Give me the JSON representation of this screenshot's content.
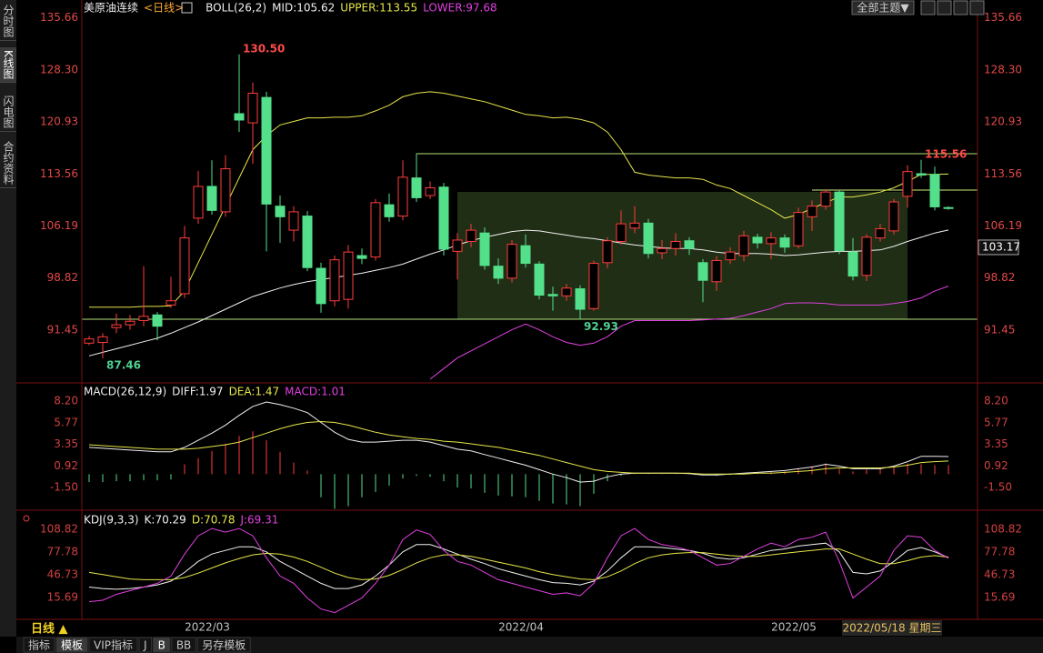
{
  "sidebar": [
    "分时图",
    "K线图",
    "闪电图",
    "合约资料"
  ],
  "toolbar": {
    "theme": "全部主题▼"
  },
  "chart_data": [
    {
      "type": "candlestick",
      "title": "美原油连续",
      "period": "<日线>",
      "indicator": "BOLL(26,2)",
      "categories": [
        null,
        null,
        null,
        null,
        null,
        null,
        null,
        null,
        null,
        "2022/03",
        null,
        null,
        null,
        null,
        null,
        null,
        null,
        null,
        null,
        null,
        null,
        null,
        null,
        null,
        null,
        null,
        null,
        null,
        null,
        null,
        null,
        null,
        "2022/04",
        null,
        null,
        null,
        null,
        null,
        null,
        null,
        null,
        null,
        null,
        null,
        null,
        null,
        null,
        null,
        null,
        null,
        null,
        null,
        "2022/05",
        null,
        null,
        null,
        null,
        null,
        null,
        null,
        null,
        null,
        null,
        null
      ],
      "open": [
        89.6,
        89.7,
        91.8,
        92.2,
        92.8,
        93.6,
        95.0,
        96.6,
        107.3,
        111.8,
        108.2,
        122.1,
        120.8,
        124.4,
        109.0,
        105.6,
        107.6,
        100.2,
        95.6,
        95.8,
        102.0,
        101.8,
        109.2,
        107.6,
        113.0,
        110.5,
        111.7,
        102.6,
        104.0,
        105.2,
        100.5,
        98.8,
        103.4,
        100.8,
        96.5,
        96.3,
        97.3,
        94.5,
        101.0,
        104.0,
        105.9,
        106.6,
        102.4,
        103.0,
        104.1,
        101.0,
        98.3,
        101.4,
        102.0,
        104.6,
        103.7,
        104.5,
        103.4,
        107.5,
        109.0,
        111.0,
        102.5,
        99.2,
        104.5,
        105.5,
        110.4,
        113.6,
        113.5,
        108.8
      ],
      "high": [
        90.6,
        91.0,
        93.8,
        93.6,
        100.5,
        94.0,
        99.0,
        106.2,
        114.0,
        115.5,
        116.2,
        130.5,
        126.5,
        125.2,
        110.5,
        109.0,
        108.3,
        101.0,
        102.0,
        103.5,
        103.0,
        110.0,
        110.8,
        115.5,
        116.5,
        112.5,
        112.3,
        105.2,
        106.5,
        106.0,
        101.6,
        104.2,
        105.0,
        101.2,
        97.6,
        98.0,
        97.8,
        101.3,
        104.6,
        108.4,
        109.0,
        107.2,
        104.2,
        105.2,
        104.6,
        101.5,
        101.9,
        103.2,
        105.5,
        105.1,
        105.3,
        105.0,
        108.8,
        109.8,
        111.4,
        111.2,
        104.5,
        105.0,
        106.5,
        110.0,
        114.8,
        115.56,
        114.6,
        109.0
      ],
      "low": [
        89.3,
        87.46,
        91.0,
        91.5,
        92.0,
        90.0,
        94.6,
        96.0,
        106.5,
        107.8,
        107.5,
        119.5,
        115.0,
        102.6,
        103.8,
        104.0,
        99.8,
        93.9,
        94.8,
        94.5,
        100.8,
        101.3,
        106.8,
        107.0,
        109.6,
        110.0,
        102.0,
        98.6,
        103.2,
        100.0,
        98.0,
        98.2,
        100.3,
        95.8,
        94.2,
        95.6,
        92.93,
        94.2,
        100.2,
        103.6,
        105.2,
        101.6,
        101.5,
        102.0,
        102.1,
        95.4,
        97.0,
        100.8,
        101.2,
        103.0,
        101.5,
        102.4,
        103.0,
        105.5,
        108.5,
        102.2,
        98.5,
        98.4,
        104.0,
        105.0,
        108.8,
        113.0,
        108.4,
        108.5
      ],
      "close": [
        90.2,
        90.5,
        92.2,
        92.7,
        93.4,
        92.0,
        95.6,
        104.5,
        111.8,
        108.4,
        114.3,
        121.2,
        125.0,
        109.3,
        107.5,
        108.2,
        100.3,
        95.2,
        101.4,
        102.5,
        101.6,
        109.5,
        107.5,
        113.1,
        110.2,
        111.6,
        102.9,
        104.2,
        105.6,
        100.6,
        98.8,
        103.6,
        100.9,
        96.4,
        96.3,
        97.4,
        94.4,
        100.9,
        104.1,
        106.5,
        106.6,
        102.3,
        103.0,
        104.0,
        103.0,
        98.5,
        101.3,
        102.5,
        104.8,
        103.8,
        104.5,
        103.2,
        108.1,
        109.0,
        111.0,
        102.7,
        99.1,
        104.6,
        105.8,
        109.6,
        113.9,
        113.4,
        108.9,
        108.7
      ],
      "high_labels": [
        null,
        null,
        null,
        null,
        null,
        null,
        null,
        null,
        null,
        null,
        null,
        "130.50",
        null,
        null,
        null,
        null,
        null,
        null,
        null,
        null,
        null,
        null,
        null,
        null,
        null,
        null,
        null,
        null,
        null,
        null,
        null,
        null,
        null,
        null,
        null,
        null,
        null,
        null,
        null,
        null,
        null,
        null,
        null,
        null,
        null,
        null,
        null,
        null,
        null,
        null,
        null,
        null,
        null,
        null,
        null,
        null,
        null,
        null,
        null,
        null,
        null,
        "115.56",
        null,
        null
      ],
      "low_labels": [
        null,
        "87.46",
        null,
        null,
        null,
        null,
        null,
        null,
        null,
        null,
        null,
        null,
        null,
        null,
        null,
        null,
        null,
        null,
        null,
        null,
        null,
        null,
        null,
        null,
        null,
        null,
        null,
        null,
        null,
        null,
        null,
        null,
        null,
        null,
        null,
        null,
        "92.93",
        null,
        null,
        null,
        null,
        null,
        null,
        null,
        null,
        null,
        null,
        null,
        null,
        null,
        null,
        null,
        null,
        null,
        null,
        null,
        null,
        null,
        null,
        null,
        null,
        null,
        null,
        null
      ],
      "up_color": "#ff3c3c",
      "down_color": "#54e08a",
      "series": [
        {
          "name": "MID:105.62",
          "color": "#f0f0f0",
          "values": [
            87.8,
            88.3,
            88.8,
            89.3,
            89.8,
            90.3,
            91.0,
            91.8,
            92.6,
            93.5,
            94.4,
            95.3,
            96.2,
            96.8,
            97.4,
            97.9,
            98.3,
            98.6,
            98.9,
            99.2,
            99.5,
            99.9,
            100.3,
            100.8,
            101.5,
            102.2,
            102.8,
            103.5,
            104.1,
            104.6,
            105.0,
            105.4,
            105.6,
            105.5,
            105.2,
            104.9,
            104.6,
            104.4,
            104.1,
            103.8,
            103.5,
            103.3,
            103.1,
            103.0,
            103.0,
            102.8,
            102.5,
            102.3,
            102.3,
            102.3,
            102.2,
            102.0,
            102.1,
            102.3,
            102.5,
            102.6,
            102.6,
            102.7,
            102.8,
            103.3,
            104.0,
            104.6,
            105.2,
            105.62
          ]
        },
        {
          "name": "UPPER:113.55",
          "color": "#e6e64a",
          "values": [
            94.7,
            94.7,
            94.7,
            94.7,
            94.8,
            94.8,
            94.9,
            97.0,
            101.0,
            105.0,
            109.0,
            113.0,
            117.0,
            119.0,
            120.5,
            121.0,
            121.5,
            121.5,
            121.6,
            121.6,
            121.8,
            122.5,
            123.3,
            124.5,
            125.0,
            125.2,
            125.0,
            124.6,
            124.2,
            123.8,
            123.2,
            122.6,
            122.0,
            121.8,
            121.5,
            121.6,
            121.3,
            120.8,
            119.5,
            117.0,
            113.8,
            113.4,
            113.2,
            113.0,
            113.0,
            112.8,
            112.0,
            111.5,
            110.5,
            109.5,
            108.5,
            107.3,
            107.8,
            108.7,
            109.5,
            110.3,
            110.3,
            110.6,
            111.0,
            111.6,
            112.5,
            113.5,
            113.5,
            113.55
          ]
        },
        {
          "name": "LOWER:97.68",
          "color": "#e040e0",
          "values": [
            null,
            null,
            null,
            null,
            null,
            null,
            null,
            null,
            null,
            null,
            null,
            null,
            null,
            null,
            null,
            null,
            null,
            null,
            null,
            null,
            null,
            null,
            null,
            null,
            null,
            84.5,
            86.0,
            87.5,
            88.5,
            89.5,
            90.5,
            91.5,
            92.3,
            91.5,
            90.5,
            89.7,
            89.3,
            89.6,
            90.5,
            92.0,
            92.8,
            92.8,
            92.8,
            92.8,
            92.8,
            92.9,
            93.0,
            93.1,
            93.5,
            94.0,
            94.5,
            95.2,
            95.3,
            95.3,
            95.2,
            95.0,
            95.0,
            95.0,
            95.0,
            95.2,
            95.5,
            96.0,
            97.0,
            97.68
          ]
        }
      ],
      "ylim": [
        84.1,
        138.2
      ],
      "yticks": [
        135.66,
        {
          "value": 128.3,
          "label": "128.30"
        },
        120.93,
        113.56,
        106.19,
        98.82,
        91.45
      ],
      "last_price": 103.17
    },
    {
      "type": "macd",
      "title": "MACD(26,12,9)",
      "bars": {
        "name": "MACD:1.01",
        "color": "#e040e0",
        "up_color": "#ff3c3c",
        "down_color": "#54e08a",
        "values": [
          -0.9,
          -0.9,
          -0.8,
          -0.8,
          -0.7,
          -0.7,
          -0.6,
          1.1,
          1.8,
          2.6,
          3.4,
          4.3,
          4.8,
          3.8,
          2.5,
          1.3,
          0.4,
          -2.6,
          -3.9,
          -3.6,
          -2.6,
          -2.0,
          -1.3,
          -0.5,
          -0.2,
          -0.3,
          -0.8,
          -1.5,
          -1.6,
          -2.1,
          -2.4,
          -2.5,
          -2.6,
          -3.0,
          -3.3,
          -3.4,
          -3.6,
          -2.2,
          -0.8,
          -0.2,
          0.1,
          0.1,
          0.05,
          0.1,
          0.05,
          -0.1,
          -0.2,
          -0.1,
          0.1,
          0.2,
          0.3,
          0.3,
          0.6,
          0.9,
          1.2,
          0.6,
          0.3,
          0.5,
          0.6,
          0.9,
          1.2,
          1.1,
          1.0,
          1.01
        ]
      },
      "series": [
        {
          "name": "DIFF:1.97",
          "color": "#f0f0f0",
          "values": [
            3.0,
            2.9,
            2.8,
            2.7,
            2.6,
            2.5,
            2.5,
            3.0,
            3.8,
            4.6,
            5.5,
            6.6,
            7.6,
            8.1,
            7.8,
            7.4,
            6.9,
            5.8,
            4.7,
            3.9,
            3.6,
            3.6,
            3.7,
            3.8,
            3.8,
            3.6,
            3.2,
            2.8,
            2.6,
            2.2,
            1.8,
            1.4,
            1.0,
            0.5,
            0.0,
            -0.4,
            -0.9,
            -0.8,
            -0.3,
            0.0,
            0.1,
            0.1,
            0.1,
            0.1,
            0.05,
            -0.1,
            -0.1,
            0.0,
            0.1,
            0.2,
            0.3,
            0.4,
            0.6,
            0.8,
            1.1,
            0.9,
            0.6,
            0.6,
            0.6,
            0.9,
            1.4,
            2.0,
            2.0,
            1.97
          ]
        },
        {
          "name": "DEA:1.47",
          "color": "#e6e64a",
          "values": [
            3.3,
            3.2,
            3.1,
            3.0,
            2.9,
            2.8,
            2.8,
            2.8,
            2.9,
            3.1,
            3.3,
            3.6,
            4.1,
            4.6,
            5.1,
            5.5,
            5.8,
            5.9,
            5.8,
            5.5,
            5.1,
            4.7,
            4.4,
            4.2,
            4.0,
            3.9,
            3.7,
            3.6,
            3.4,
            3.2,
            3.0,
            2.7,
            2.4,
            2.1,
            1.7,
            1.3,
            0.9,
            0.5,
            0.3,
            0.2,
            0.1,
            0.1,
            0.1,
            0.1,
            0.1,
            0.0,
            0.0,
            0.0,
            0.0,
            0.1,
            0.1,
            0.2,
            0.3,
            0.4,
            0.6,
            0.7,
            0.7,
            0.7,
            0.7,
            0.8,
            1.0,
            1.3,
            1.4,
            1.47
          ]
        }
      ],
      "ylim": [
        -3.95,
        10.14
      ],
      "yticks": [
        {
          "value": 8.2,
          "label": "8.20"
        },
        5.77,
        3.35,
        0.92,
        {
          "value": -1.5,
          "label": "-1.50"
        }
      ]
    },
    {
      "type": "kdj",
      "title": "KDJ(9,3,3)",
      "series": [
        {
          "name": "K:70.29",
          "color": "#f0f0f0",
          "values": [
            30,
            28,
            27,
            28,
            30,
            33,
            38,
            50,
            65,
            75,
            80,
            85,
            85,
            78,
            65,
            55,
            45,
            35,
            28,
            28,
            33,
            45,
            60,
            78,
            88,
            88,
            82,
            75,
            68,
            62,
            55,
            50,
            45,
            40,
            36,
            35,
            33,
            38,
            52,
            70,
            85,
            85,
            84,
            82,
            80,
            76,
            70,
            68,
            70,
            75,
            80,
            82,
            86,
            88,
            90,
            78,
            50,
            48,
            52,
            65,
            80,
            84,
            78,
            70.29
          ]
        },
        {
          "name": "D:70.78",
          "color": "#e6e64a",
          "values": [
            50,
            47,
            44,
            41,
            40,
            40,
            40,
            43,
            49,
            56,
            63,
            69,
            74,
            76,
            75,
            71,
            65,
            57,
            49,
            43,
            40,
            41,
            46,
            54,
            63,
            70,
            74,
            74,
            72,
            68,
            64,
            60,
            56,
            51,
            47,
            44,
            41,
            40,
            44,
            52,
            62,
            70,
            74,
            76,
            77,
            77,
            75,
            73,
            72,
            72,
            74,
            76,
            78,
            80,
            82,
            82,
            75,
            68,
            62,
            62,
            66,
            71,
            73,
            70.78
          ]
        },
        {
          "name": "J:69.31",
          "color": "#e040e0",
          "values": [
            10,
            12,
            20,
            25,
            30,
            35,
            45,
            75,
            100,
            110,
            105,
            110,
            100,
            70,
            45,
            35,
            15,
            0,
            -5,
            5,
            15,
            35,
            60,
            95,
            108,
            102,
            80,
            65,
            60,
            50,
            40,
            35,
            30,
            25,
            20,
            22,
            18,
            35,
            70,
            100,
            110,
            95,
            88,
            85,
            80,
            70,
            60,
            62,
            72,
            82,
            90,
            85,
            95,
            98,
            105,
            65,
            15,
            30,
            45,
            80,
            100,
            98,
            80,
            69.31
          ]
        }
      ],
      "ylim": [
        -12.9,
        133.7
      ],
      "yticks": [
        108.82,
        77.78,
        46.73,
        15.69
      ]
    }
  ],
  "footer": {
    "period": "日线 ▲",
    "cursor_date": "2022/05/18 星期三",
    "tabs": [
      "指标",
      "模板",
      "VIP指标",
      "J",
      "B",
      "BB",
      "另存模板"
    ]
  }
}
